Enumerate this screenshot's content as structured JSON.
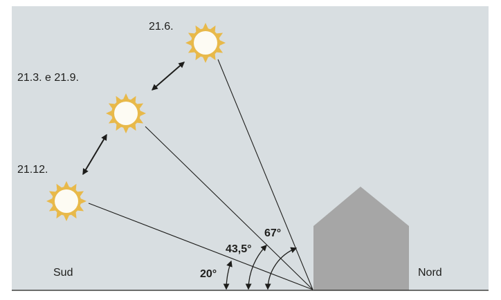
{
  "colors": {
    "background": "#d8dee1",
    "sun_fill": "#fdfbf3",
    "sun_rays": "#e8b94a",
    "house": "#a6a6a6",
    "ink": "#1d1d1b"
  },
  "sun_labels": {
    "summer": "21.6.",
    "equinox": "21.3. e 21.9.",
    "winter": "21.12."
  },
  "angles": {
    "winter": "20°",
    "equinox": "43,5°",
    "summer": "67°"
  },
  "directions": {
    "south": "Sud",
    "north": "Nord"
  },
  "icons": {
    "sun": "sun-icon",
    "house": "house-icon",
    "arrow": "double-arrow-icon"
  }
}
